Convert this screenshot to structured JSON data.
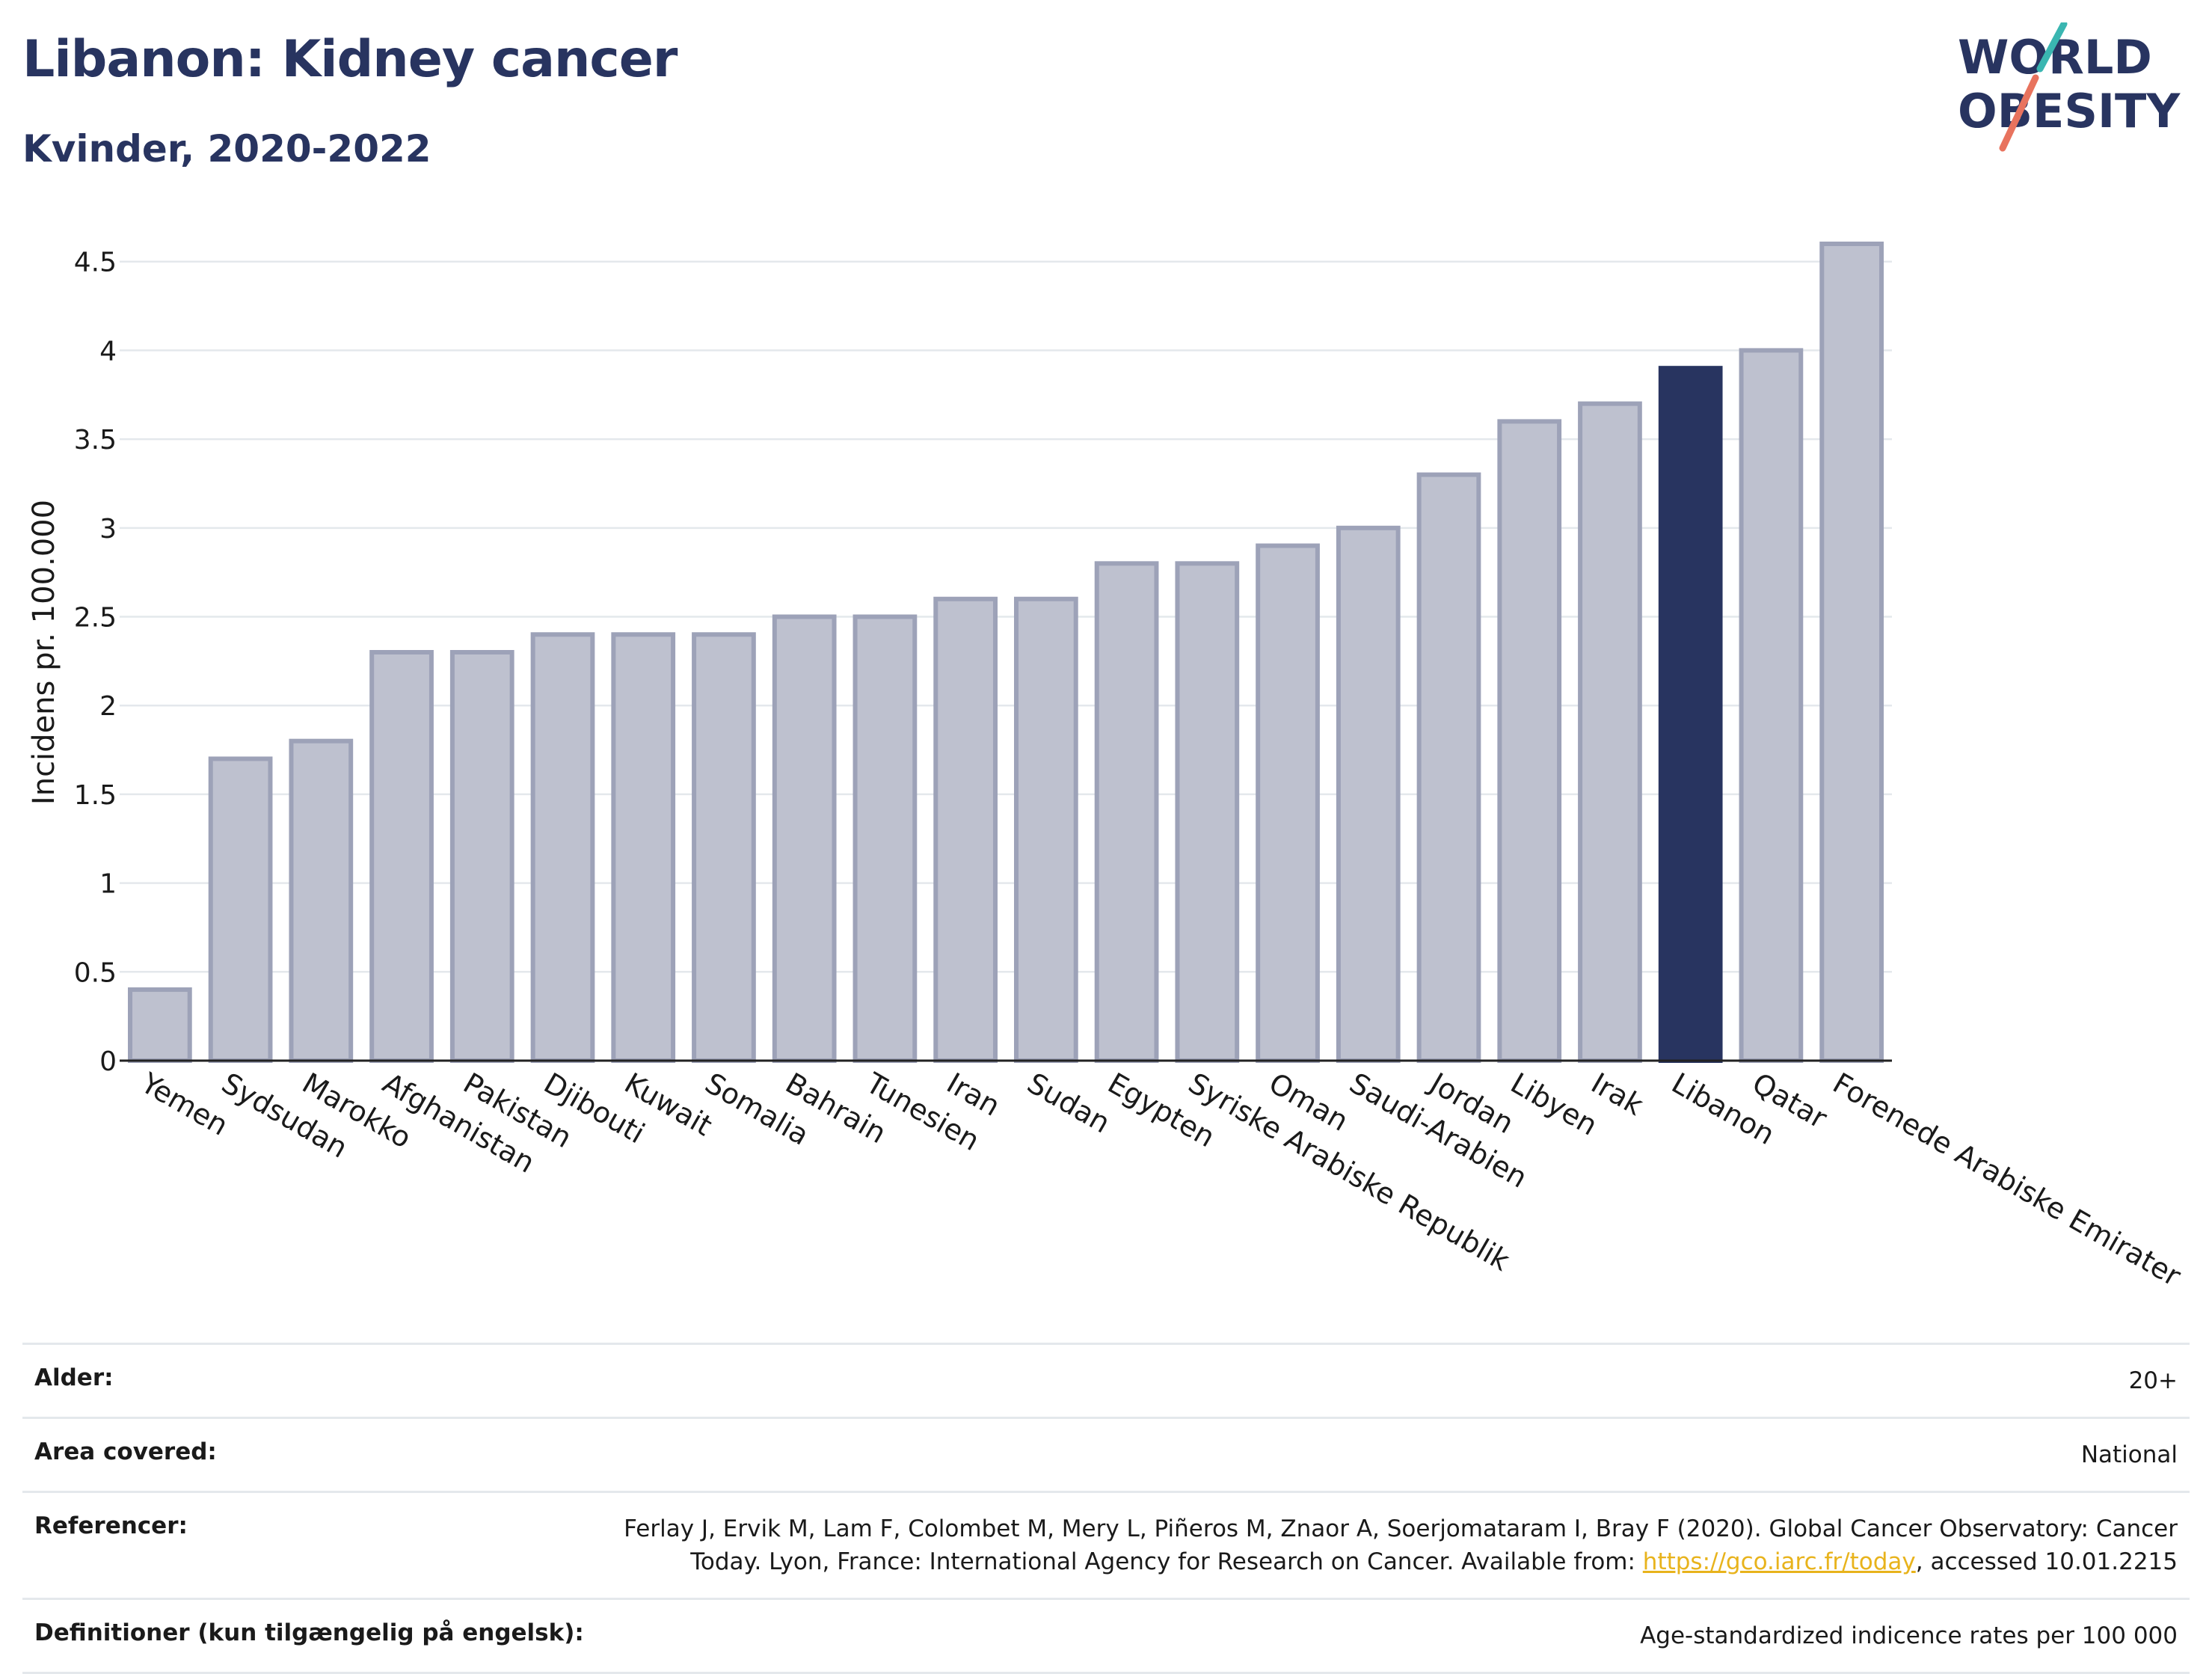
{
  "header": {
    "title": "Libanon: Kidney cancer",
    "subtitle": "Kvinder, 2020-2022"
  },
  "logo": {
    "line1": "WORLD",
    "line2": "OBESITY",
    "accent_teal": "#3ab6b1",
    "accent_coral": "#e8735e"
  },
  "colors": {
    "bar": "#bec1cf",
    "bar_border": "#9da2b8",
    "highlight": "#283460",
    "grid": "#e4e8ec",
    "axis": "#222222"
  },
  "chart_data": {
    "type": "bar",
    "title": "Libanon: Kidney cancer",
    "subtitle": "Kvinder, 2020-2022",
    "xlabel": "",
    "ylabel": "Incidens pr. 100.000",
    "ylim": [
      0,
      4.6
    ],
    "yticks": [
      0,
      0.5,
      1,
      1.5,
      2,
      2.5,
      3,
      3.5,
      4,
      4.5
    ],
    "ytick_labels": [
      "0",
      "0.5",
      "1",
      "1.5",
      "2",
      "2.5",
      "3",
      "3.5",
      "4",
      "4.5"
    ],
    "categories": [
      "Yemen",
      "Sydsudan",
      "Marokko",
      "Afghanistan",
      "Pakistan",
      "Djibouti",
      "Kuwait",
      "Somalia",
      "Bahrain",
      "Tunesien",
      "Iran",
      "Sudan",
      "Egypten",
      "Syriske Arabiske Republik",
      "Oman",
      "Saudi-Arabien",
      "Jordan",
      "Libyen",
      "Irak",
      "Libanon",
      "Qatar",
      "Forenede Arabiske Emirater"
    ],
    "values": [
      0.4,
      1.7,
      1.8,
      2.3,
      2.3,
      2.4,
      2.4,
      2.4,
      2.5,
      2.5,
      2.6,
      2.6,
      2.8,
      2.8,
      2.9,
      3.0,
      3.3,
      3.6,
      3.7,
      3.9,
      4.0,
      4.6
    ],
    "highlight": "Libanon",
    "grid": true,
    "legend": "none"
  },
  "meta": {
    "age_label": "Alder:",
    "age_value": "20+",
    "area_label": "Area covered:",
    "area_value": "National",
    "ref_label": "Referencer:",
    "ref_text_1": "Ferlay J, Ervik M, Lam F, Colombet M, Mery L, Piñeros M, Znaor A, Soerjomataram I, Bray F (2020). Global Cancer Observatory: Cancer Today. Lyon, France: International Agency for Research on Cancer. Available from: ",
    "ref_link": "https://gco.iarc.fr/today",
    "ref_text_2": ", accessed 10.01.2215",
    "def_label": "Definitioner (kun tilgængelig på engelsk):",
    "def_value": "Age-standardized indicence rates per 100 000"
  }
}
